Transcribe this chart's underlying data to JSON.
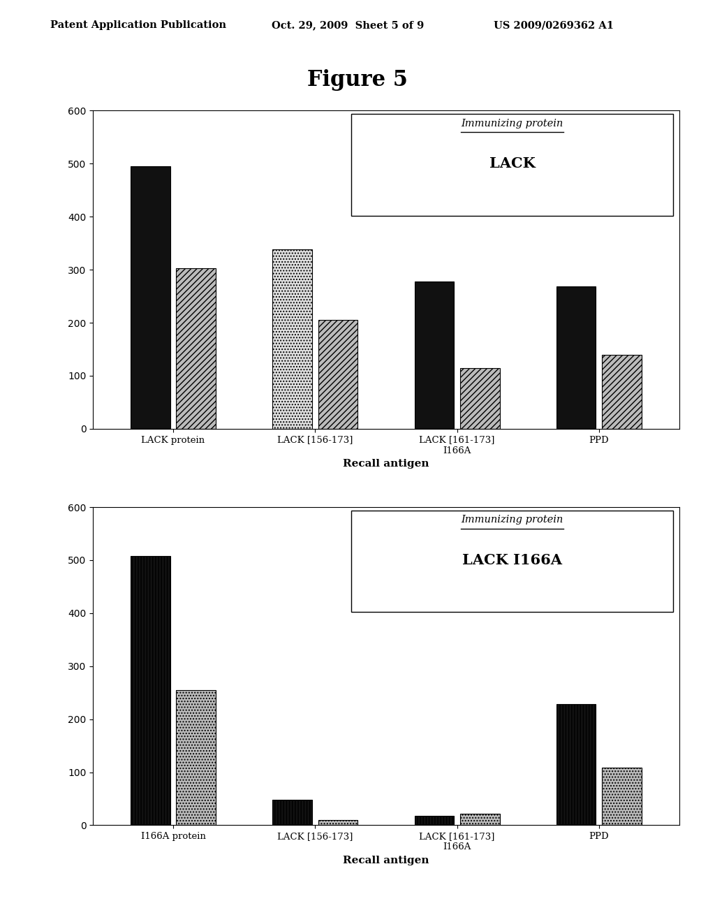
{
  "header_left": "Patent Application Publication",
  "header_mid": "Oct. 29, 2009  Sheet 5 of 9",
  "header_right": "US 2009/0269362 A1",
  "figure_title": "Figure 5",
  "chart1": {
    "immunizing_label": "Immunizing protein",
    "immunizing_name": "LACK",
    "categories": [
      "LACK protein",
      "LACK [156-173]",
      "LACK [161-173]\nI166A",
      "PPD"
    ],
    "xlabel": "Recall antigen",
    "ylim": [
      0,
      600
    ],
    "yticks": [
      0,
      100,
      200,
      300,
      400,
      500,
      600
    ],
    "bar1_values": [
      495,
      0,
      278,
      268
    ],
    "bar2_values": [
      0,
      338,
      0,
      0
    ],
    "bar3_values": [
      303,
      205,
      115,
      140
    ],
    "bar1_color": "#111111",
    "bar1_hatch": "",
    "bar2_color": "#e0e0e0",
    "bar2_hatch": "....",
    "bar3_color": "#bbbbbb",
    "bar3_hatch": "////"
  },
  "chart2": {
    "immunizing_label": "Immunizing protein",
    "immunizing_name": "LACK I166A",
    "categories": [
      "I166A protein",
      "LACK [156-173]",
      "LACK [161-173]\nI166A",
      "PPD"
    ],
    "xlabel": "Recall antigen",
    "ylim": [
      0,
      600
    ],
    "yticks": [
      0,
      100,
      200,
      300,
      400,
      500,
      600
    ],
    "bar1_values": [
      508,
      48,
      18,
      228
    ],
    "bar2_values": [
      0,
      0,
      0,
      0
    ],
    "bar3_values": [
      255,
      10,
      22,
      108
    ],
    "bar1_color": "#111111",
    "bar1_hatch": "||||",
    "bar2_color": "#e0e0e0",
    "bar2_hatch": "",
    "bar3_color": "#bbbbbb",
    "bar3_hatch": "...."
  }
}
